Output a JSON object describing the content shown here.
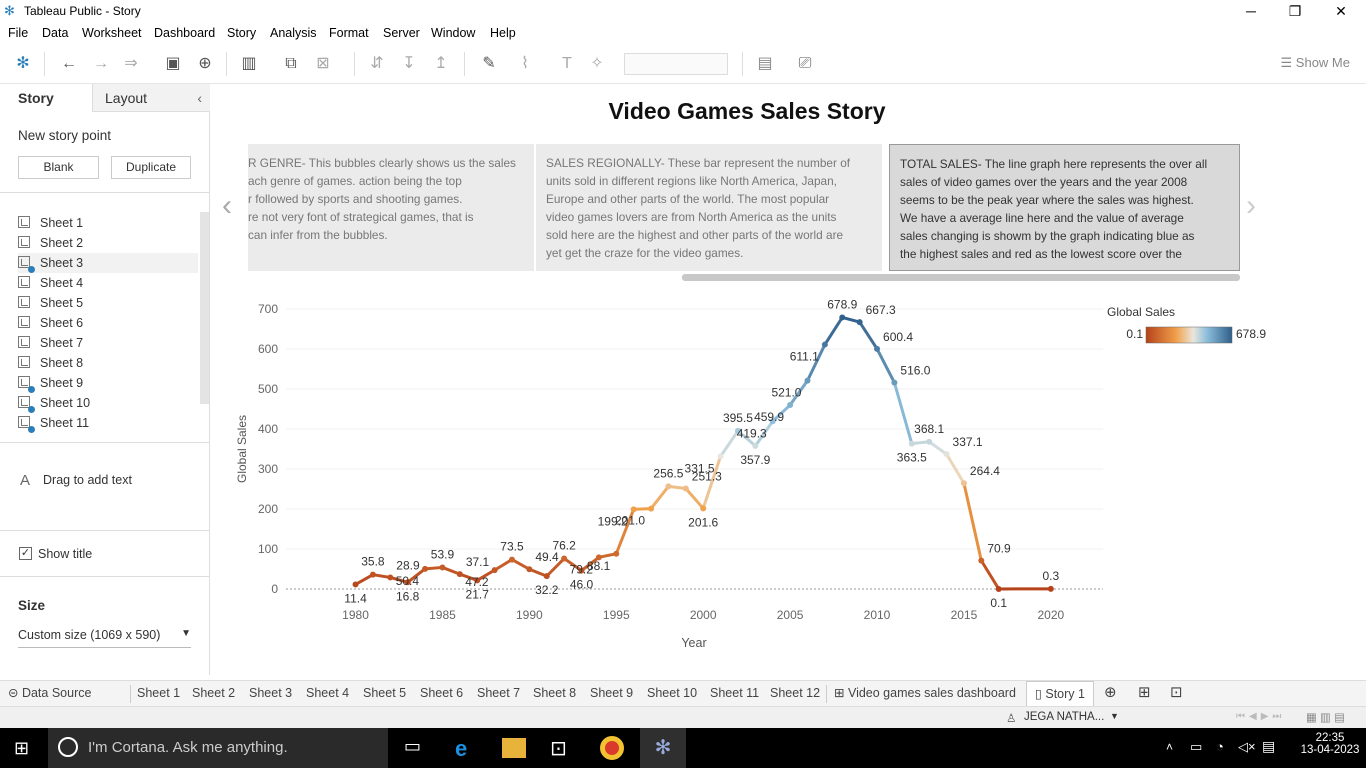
{
  "window": {
    "title": "Tableau Public - Story",
    "minimize": "─",
    "restore": "❐",
    "close": "✕"
  },
  "menu": [
    "File",
    "Data",
    "Worksheet",
    "Dashboard",
    "Story",
    "Analysis",
    "Format",
    "Server",
    "Window",
    "Help"
  ],
  "toolbar": {
    "show_me": "Show Me"
  },
  "left_panel": {
    "tabs": {
      "story": "Story",
      "layout": "Layout"
    },
    "new_story_point": "New story point",
    "blank": "Blank",
    "duplicate": "Duplicate",
    "sheets": [
      "Sheet 1",
      "Sheet 2",
      "Sheet 3",
      "Sheet 4",
      "Sheet 5",
      "Sheet 6",
      "Sheet 7",
      "Sheet 8",
      "Sheet 9",
      "Sheet 10",
      "Sheet 11"
    ],
    "drag_text": "Drag to add text",
    "show_title": "Show title",
    "size_label": "Size",
    "size_value": "Custom size (1069 x 590)"
  },
  "story": {
    "title": "Video Games Sales Story",
    "points": [
      {
        "lines": [
          "R GENRE- This bubbles clearly shows us the sales",
          "ach genre of games. action being the top",
          "r followed by sports and shooting games.",
          "re not very font of strategical games, that is",
          "can infer from the bubbles."
        ]
      },
      {
        "lines": [
          "SALES REGIONALLY- These bar represent the number of",
          "units sold in different regions like North America, Japan,",
          "Europe and other parts of the world.  The most popular",
          "video games lovers are from North America as the units",
          "sold here are the highest and other parts of the world are",
          "yet get the craze for the video games."
        ]
      },
      {
        "lines": [
          "TOTAL SALES- The line graph here represents the over all",
          "sales of video games over the years and the year 2008",
          "seems to be the peak year where the sales was highest.",
          "We have a average line here and the value of average",
          "sales changing is showm by the graph indicating blue as",
          "the highest sales and red as the lowest score over the"
        ]
      }
    ]
  },
  "chart_data": {
    "type": "line",
    "xlabel": "Year",
    "ylabel": "Global Sales",
    "xlim": [
      1976,
      2023
    ],
    "ylim": [
      0,
      700
    ],
    "xticks": [
      "1980",
      "1985",
      "1990",
      "1995",
      "2000",
      "2005",
      "2010",
      "2015",
      "2020"
    ],
    "yticks": [
      "0",
      "100",
      "200",
      "300",
      "400",
      "500",
      "600",
      "700"
    ],
    "legend": {
      "title": "Global Sales",
      "min": "0.1",
      "max": "678.9",
      "position": "top-right"
    },
    "colors": {
      "low": "#b5421a",
      "mid_low": "#f0a04a",
      "mid_high": "#8fc0dc",
      "high": "#2f5f8a"
    },
    "x": [
      1980,
      1981,
      1982,
      1983,
      1984,
      1985,
      1986,
      1987,
      1988,
      1989,
      1990,
      1991,
      1992,
      1993,
      1994,
      1995,
      1996,
      1997,
      1998,
      1999,
      2000,
      2001,
      2002,
      2003,
      2004,
      2005,
      2006,
      2007,
      2008,
      2009,
      2010,
      2011,
      2012,
      2013,
      2014,
      2015,
      2016,
      2017,
      2020
    ],
    "values": [
      11.4,
      35.8,
      28.9,
      16.8,
      50.4,
      53.9,
      37.1,
      21.7,
      47.2,
      73.5,
      49.4,
      32.2,
      76.2,
      46.0,
      79.2,
      88.1,
      199.2,
      201.0,
      256.5,
      251.3,
      201.6,
      331.5,
      395.5,
      357.9,
      419.3,
      459.9,
      521.0,
      611.1,
      678.9,
      667.3,
      600.4,
      516.0,
      363.5,
      368.1,
      337.1,
      264.4,
      70.9,
      0.1,
      0.3
    ],
    "labels": [
      "11.4",
      "35.8",
      "28.9",
      "16.8",
      "50.4",
      "53.9",
      "37.1",
      "21.7",
      "47.2",
      "73.5",
      "49.4",
      "32.2",
      "76.2",
      "46.0",
      "79.2",
      "88.1",
      "199.2",
      "201.0",
      "256.5",
      "251.3",
      "201.6",
      "331.5",
      "395.5",
      "357.9",
      "419.3",
      "459.9",
      "521.0",
      "611.1",
      "678.9",
      "667.3",
      "600.4",
      "516.0",
      "363.5",
      "368.1",
      "337.1",
      "264.4",
      "70.9",
      "0.1",
      "0.3"
    ]
  },
  "bottom_tabs": [
    "Data Source",
    "Sheet 1",
    "Sheet 2",
    "Sheet 3",
    "Sheet 4",
    "Sheet 5",
    "Sheet 6",
    "Sheet 7",
    "Sheet 8",
    "Sheet 9",
    "Sheet 10",
    "Sheet 11",
    "Sheet 12",
    "Video games sales dashboard",
    "Story 1"
  ],
  "status": {
    "user": "JEGA NATHA..."
  },
  "taskbar": {
    "cortana": "I'm Cortana. Ask me anything.",
    "time": "22:35",
    "date": "13-04-2023"
  }
}
